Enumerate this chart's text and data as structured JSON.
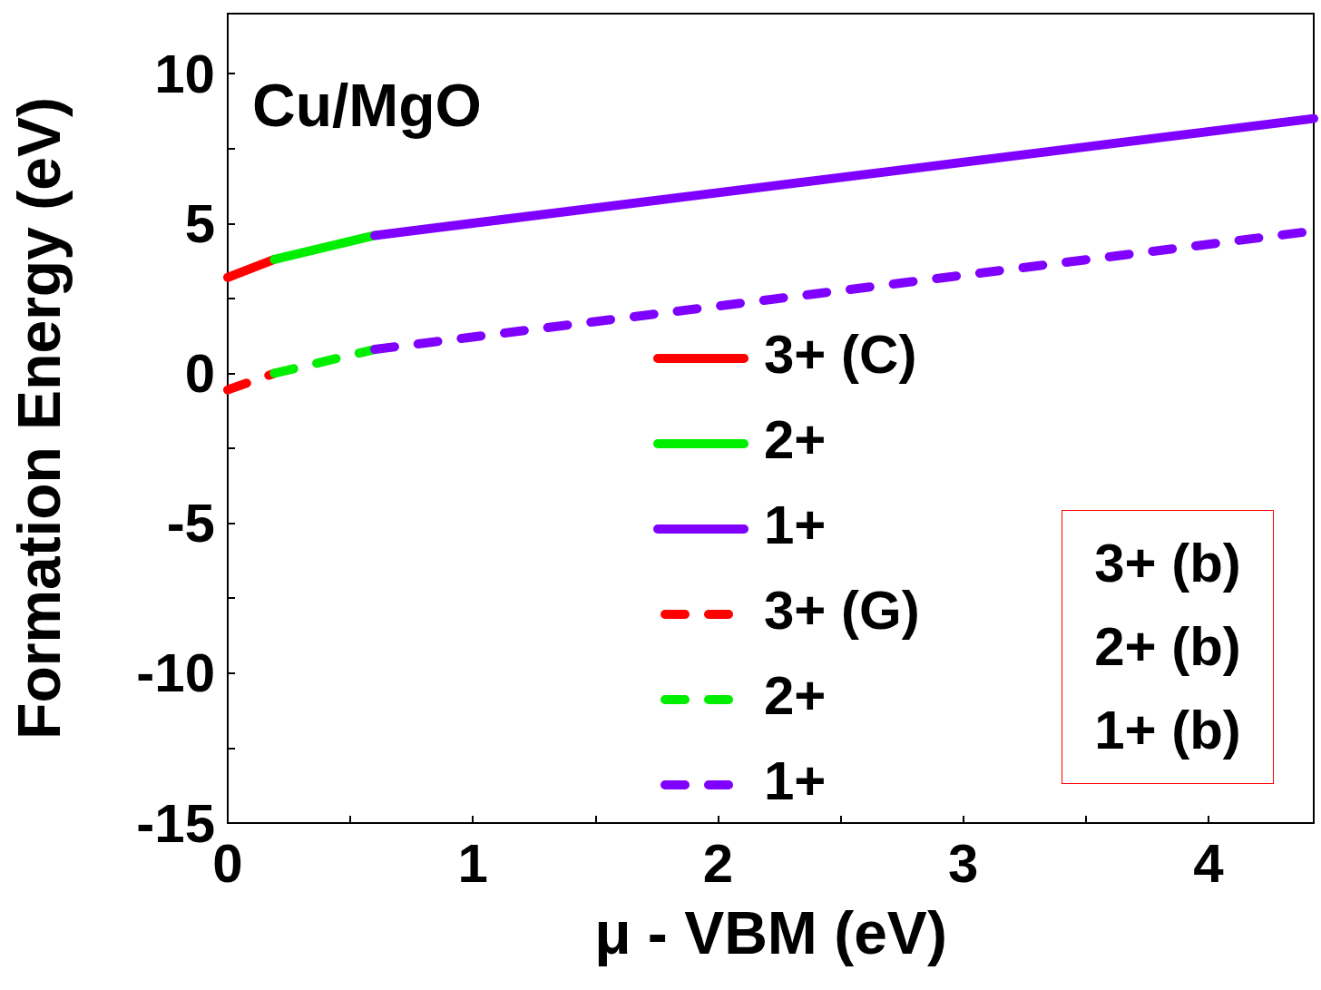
{
  "chart_data": {
    "type": "line",
    "xlabel": "μ - VBM (eV)",
    "ylabel": "Formation Energy (eV)",
    "xlim": [
      0,
      4.43
    ],
    "ylim": [
      -15,
      12
    ],
    "xticks": [
      0,
      {
        "value": 0.5,
        "label": null
      },
      1,
      {
        "value": 1.5,
        "label": null
      },
      2,
      {
        "value": 2.5,
        "label": null
      },
      3,
      {
        "value": 3.5,
        "label": null
      },
      4
    ],
    "yticks": [
      -15,
      {
        "value": -12.5,
        "label": null
      },
      -10,
      {
        "value": -7.5,
        "label": null
      },
      -5,
      {
        "value": -2.5,
        "label": null
      },
      0,
      {
        "value": 2.5,
        "label": null
      },
      5,
      {
        "value": 7.5,
        "label": null
      },
      10
    ],
    "grid": false,
    "legend": "bottom",
    "marker": "none",
    "annotations": [
      "Cu/MgO",
      "3+ (b)",
      "2+ (b)",
      "1+ (b)"
    ],
    "series": [
      {
        "name": "3+ (C)",
        "color": "#ff0000",
        "line_style": "solid",
        "x": [
          0,
          0.19
        ],
        "values": [
          3.2,
          3.8
        ]
      },
      {
        "name": "2+",
        "color": "#00ee00",
        "line_style": "solid",
        "x": [
          0.19,
          0.6
        ],
        "values": [
          3.8,
          4.6
        ]
      },
      {
        "name": "1+",
        "color": "#7f00ff",
        "line_style": "solid",
        "x": [
          0.6,
          4.43
        ],
        "values": [
          4.6,
          8.5
        ]
      },
      {
        "name": "3+ (G)",
        "color": "#ff0000",
        "line_style": "dashed",
        "x": [
          0,
          0.19
        ],
        "values": [
          -0.55,
          0.0
        ]
      },
      {
        "name": "2+",
        "color": "#00ee00",
        "line_style": "dashed",
        "x": [
          0.19,
          0.6
        ],
        "values": [
          0.0,
          0.8
        ]
      },
      {
        "name": "1+",
        "color": "#7f00ff",
        "line_style": "dashed",
        "x": [
          0.6,
          4.43
        ],
        "values": [
          0.8,
          4.75
        ]
      }
    ]
  }
}
